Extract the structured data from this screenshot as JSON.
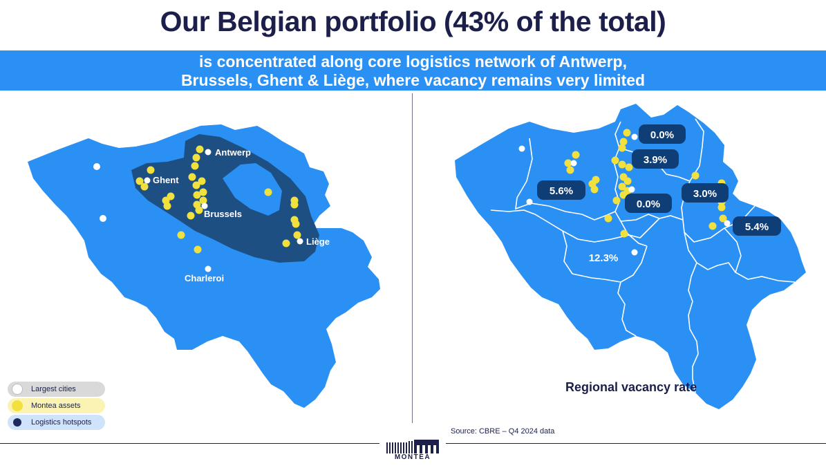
{
  "title": "Our Belgian portfolio (43% of the total)",
  "subtitle_line1": "is concentrated along core logistics network of Antwerp,",
  "subtitle_line2": "Brussels, Ghent & Liège, where vacancy remains very limited",
  "left_map": {
    "cities": [
      {
        "name": "Antwerp",
        "label": "Antwerp"
      },
      {
        "name": "Ghent",
        "label": "Ghent"
      },
      {
        "name": "Brussels",
        "label": "Brussels"
      },
      {
        "name": "Liège",
        "label": "Liège"
      },
      {
        "name": "Charleroi",
        "label": "Charleroi"
      }
    ],
    "legend": {
      "cities": "Largest cities",
      "assets": "Montea assets",
      "hotspots": "Logistics hotspots"
    }
  },
  "right_map": {
    "vacancy_rates": [
      {
        "region": "antwerp-north",
        "value": "0.0%"
      },
      {
        "region": "antwerp",
        "value": "3.9%"
      },
      {
        "region": "ghent",
        "value": "5.6%"
      },
      {
        "region": "brussels",
        "value": "0.0%"
      },
      {
        "region": "limburg",
        "value": "3.0%"
      },
      {
        "region": "liege",
        "value": "5.4%"
      },
      {
        "region": "wallonia-west",
        "value": "12.3%"
      }
    ],
    "label": "Regional vacancy rate"
  },
  "source": "Source: CBRE – Q4 2024 data",
  "logo_text": "MONTEA",
  "colors": {
    "map_fill": "#2b90f4",
    "hotspot": "#1d4f82",
    "asset": "#f1e03e",
    "navy": "#1b1f4a",
    "badge": "#0f3d75"
  }
}
